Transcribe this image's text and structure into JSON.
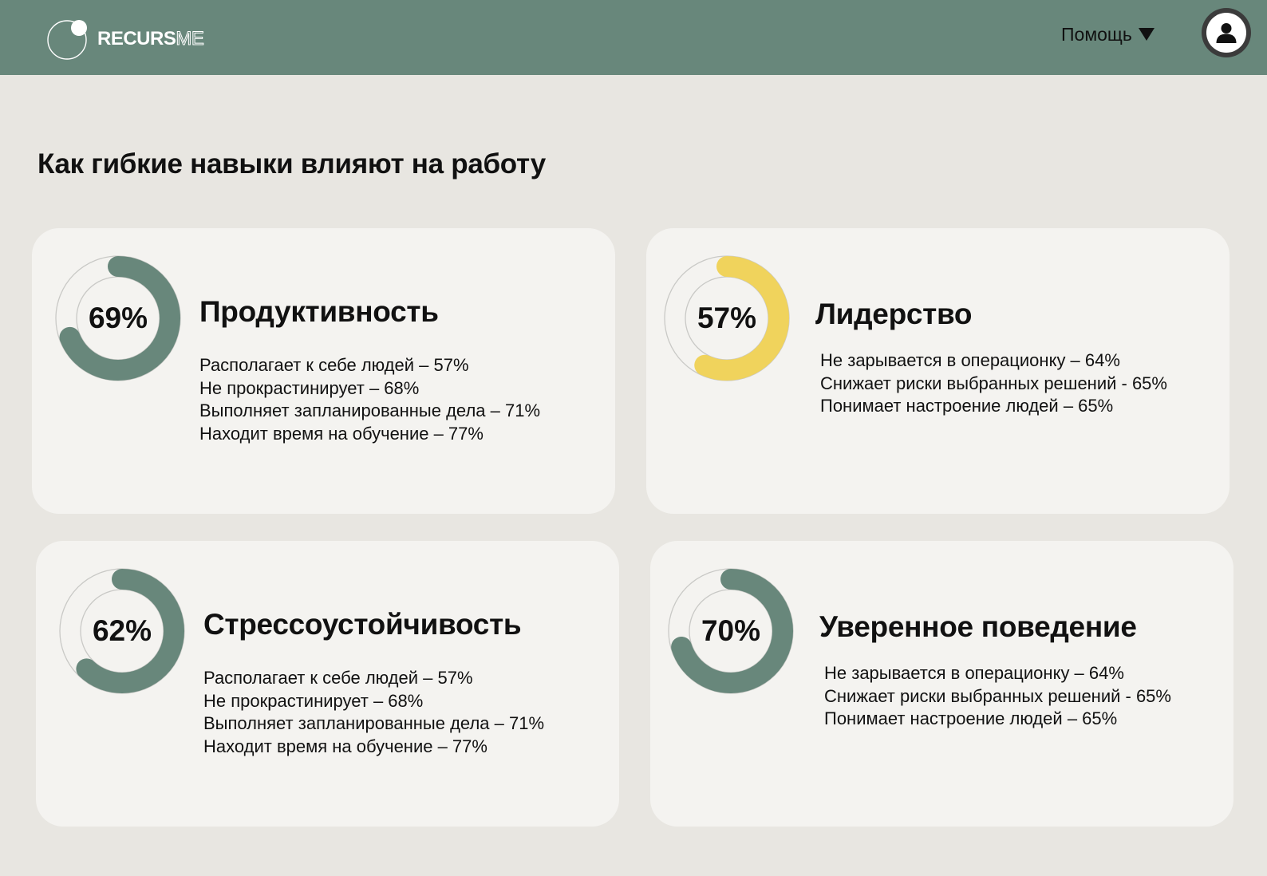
{
  "header": {
    "brand_bold": "RECURS",
    "brand_outline": "ME",
    "help_label": "Помощь",
    "colors": {
      "bar": "#68877B",
      "text": "#111111"
    }
  },
  "page": {
    "title": "Как гибкие навыки влияют на работу"
  },
  "cards": [
    {
      "title": "Продуктивность",
      "percent_label": "69%",
      "percent": 69,
      "color": "#68877B",
      "items": [
        "Располагает к себе людей – 57%",
        "Не прокрастинирует – 68%",
        "Выполняет запланированные дела – 71%",
        "Находит время на обучение – 77%"
      ]
    },
    {
      "title": "Лидерство",
      "percent_label": "57%",
      "percent": 57,
      "color": "#F0D35C",
      "items": [
        "Не зарывается в операционку – 64%",
        "Снижает риски выбранных решений - 65%",
        "Понимает настроение людей – 65%"
      ]
    },
    {
      "title": "Стрессоустойчивость",
      "percent_label": "62%",
      "percent": 62,
      "color": "#68877B",
      "items": [
        "Располагает к себе людей – 57%",
        "Не прокрастинирует – 68%",
        "Выполняет запланированные дела – 71%",
        "Находит время на обучение – 77%"
      ]
    },
    {
      "title": "Уверенное поведение",
      "percent_label": "70%",
      "percent": 70,
      "color": "#68877B",
      "items": [
        "Не зарывается в операционку – 64%",
        "Снижает риски выбранных решений - 65%",
        "Понимает настроение людей – 65%"
      ]
    }
  ]
}
